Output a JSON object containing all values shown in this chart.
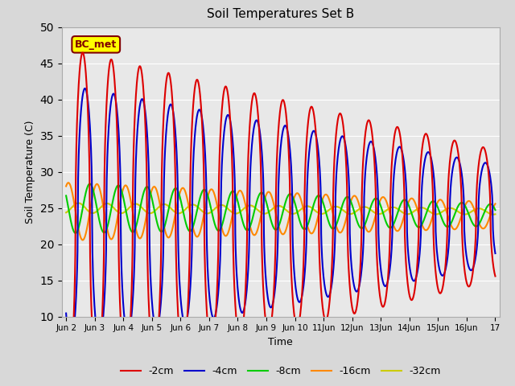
{
  "title": "Soil Temperatures Set B",
  "xlabel": "Time",
  "ylabel": "Soil Temperature (C)",
  "ylim": [
    10,
    50
  ],
  "yticks": [
    10,
    15,
    20,
    25,
    30,
    35,
    40,
    45,
    50
  ],
  "background_color": "#d8d8d8",
  "plot_bg_color": "#e8e8e8",
  "annotation_text": "BC_met",
  "annotation_bg": "#ffff00",
  "annotation_border": "#800000",
  "series": {
    "-2cm": {
      "color": "#dd0000",
      "linewidth": 1.5
    },
    "-4cm": {
      "color": "#0000cc",
      "linewidth": 1.5
    },
    "-8cm": {
      "color": "#00cc00",
      "linewidth": 1.5
    },
    "-16cm": {
      "color": "#ff8800",
      "linewidth": 1.5
    },
    "-32cm": {
      "color": "#cccc00",
      "linewidth": 1.5
    }
  },
  "x_start": 0,
  "x_end": 15,
  "n_points": 1500,
  "xtick_positions": [
    0,
    1,
    2,
    3,
    4,
    5,
    6,
    7,
    8,
    9,
    10,
    11,
    12,
    13,
    14,
    15
  ],
  "xtick_labels": [
    "Jun 2",
    "Jun 3",
    "Jun 4",
    "Jun 5",
    "Jun 6",
    "Jun 7",
    "Jun 8",
    "Jun 9",
    "Jun 10",
    "11Jun",
    "12Jun",
    "13Jun",
    "14Jun",
    "15Jun",
    "16Jun",
    "17"
  ]
}
